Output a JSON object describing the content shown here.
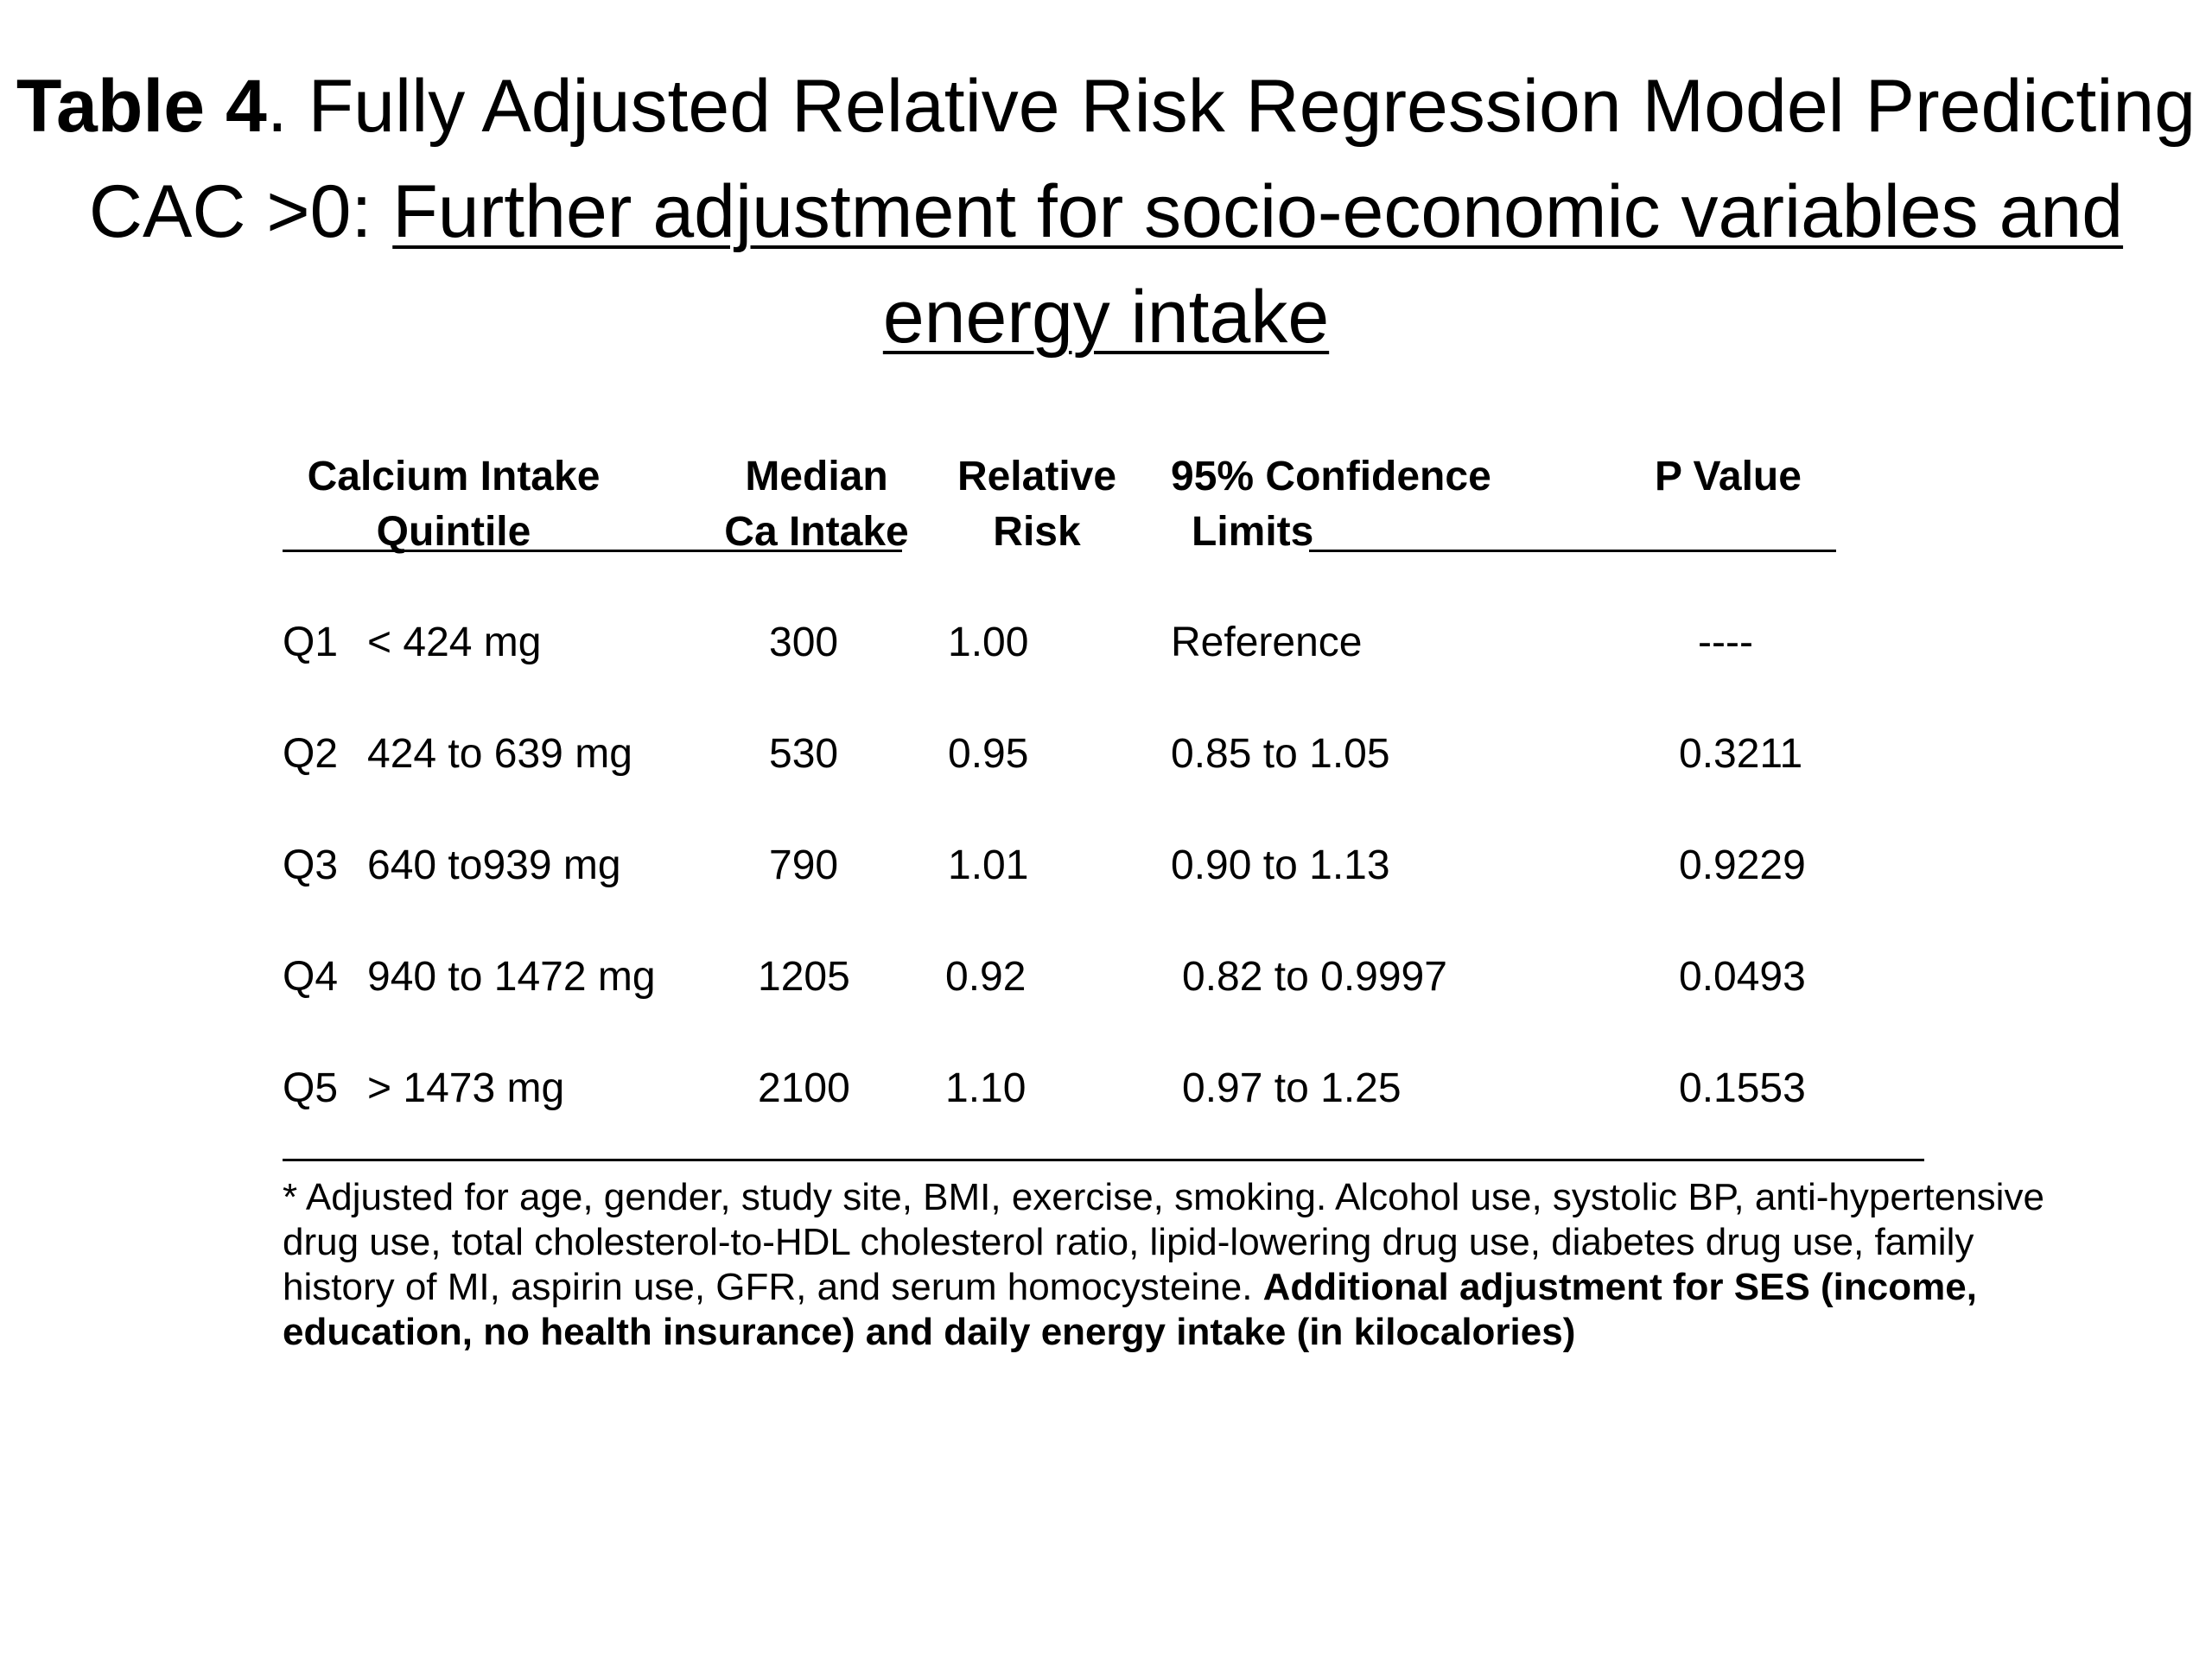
{
  "title": {
    "label": "Table 4",
    "main": ".  Fully Adjusted Relative Risk Regression Model Predicting CAC >0: ",
    "sub": "Further adjustment for socio-economic variables and energy intake"
  },
  "table": {
    "headers": {
      "quintile": [
        "Calcium Intake",
        "Quintile"
      ],
      "median": [
        "Median",
        "Ca Intake"
      ],
      "rr": [
        "Relative",
        "Risk"
      ],
      "ci": [
        "95% Confidence",
        "Limits"
      ],
      "p": [
        "P Value"
      ]
    },
    "rows": [
      {
        "q": "Q1",
        "range": "< 424 mg",
        "median": "300",
        "rr": "1.00",
        "ci": "Reference",
        "p": "----"
      },
      {
        "q": "Q2",
        "range": "424 to 639 mg",
        "median": "530",
        "rr": "0.95",
        "ci": "0.85 to 1.05",
        "p": "0.3211"
      },
      {
        "q": "Q3",
        "range": "640 to939 mg",
        "median": "790",
        "rr": "1.01",
        "ci": "0.90 to 1.13",
        "p": "0.9229"
      },
      {
        "q": "Q4",
        "range": "940 to 1472 mg",
        "median": "1205",
        "rr": "0.92",
        "ci": "0.82 to 0.9997",
        "p": "0.0493"
      },
      {
        "q": "Q5",
        "range": "> 1473 mg",
        "median": "2100",
        "rr": "1.10",
        "ci": "0.97 to 1.25",
        "p": "0.1553"
      }
    ]
  },
  "footnote": {
    "normal": "* Adjusted for age, gender, study site, BMI, exercise, smoking. Alcohol use, systolic BP, anti-hypertensive drug use, total cholesterol-to-HDL cholesterol ratio, lipid-lowering drug use, diabetes drug use, family history of MI, aspirin use, GFR, and serum homocysteine. ",
    "bold": "Additional adjustment for SES (income, education, no health insurance) and  daily energy intake (in kilocalories)"
  }
}
